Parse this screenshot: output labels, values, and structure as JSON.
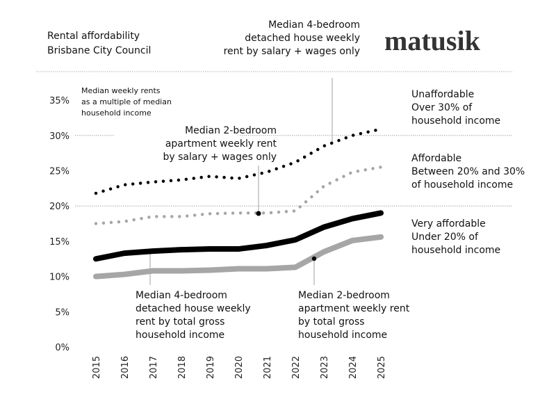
{
  "header": {
    "title": "Rental affordability",
    "subtitle": "Brisbane City Council",
    "logo": "matusik"
  },
  "subtitle_note": [
    "Median weekly rents",
    "as a multiple of median",
    "household income"
  ],
  "bands": [
    {
      "label": "Unaffordable",
      "desc": [
        "Over 30% of",
        "household income"
      ]
    },
    {
      "label": "Affordable",
      "desc": [
        "Between 20% and 30%",
        "of household income"
      ]
    },
    {
      "label": "Very affordable",
      "desc": [
        "Under 20% of",
        "household income"
      ]
    }
  ],
  "annotations": [
    {
      "lines": [
        "Median 4-bedroom",
        "detached house weekly",
        "rent by salary + wages only"
      ]
    },
    {
      "lines": [
        "Median 2-bedroom",
        "apartment weekly rent",
        "by salary + wages only"
      ]
    },
    {
      "lines": [
        "Median 4-bedroom",
        "detached house weekly",
        "rent by total gross",
        "household income"
      ]
    },
    {
      "lines": [
        "Median 2-bedroom",
        "apartment weekly rent",
        "by total gross",
        "household income"
      ]
    }
  ],
  "colors": {
    "black": "#000000",
    "grey": "#a6a6a6",
    "grid": "#999999"
  },
  "chart_data": {
    "type": "line",
    "title": "Rental affordability",
    "subtitle": "Brisbane City Council",
    "ylabel": "",
    "xlabel": "",
    "ylim": [
      0,
      35
    ],
    "yticks": [
      "0%",
      "5%",
      "10%",
      "15%",
      "20%",
      "25%",
      "30%",
      "35%"
    ],
    "x": [
      "2015",
      "2016",
      "2017",
      "2018",
      "2019",
      "2020",
      "2021",
      "2022",
      "2023",
      "2024",
      "2025"
    ],
    "reference_lines": [
      20,
      30
    ],
    "series": [
      {
        "name": "Median 4-bedroom detached house weekly rent by salary + wages only",
        "style": "dotted",
        "color": "#000000",
        "values": [
          21.8,
          23.0,
          23.4,
          23.7,
          24.2,
          23.9,
          24.8,
          26.2,
          28.5,
          30.0,
          30.9
        ]
      },
      {
        "name": "Median 2-bedroom apartment weekly rent by salary + wages only",
        "style": "dotted",
        "color": "#a6a6a6",
        "values": [
          17.5,
          17.8,
          18.5,
          18.5,
          18.9,
          19.0,
          19.0,
          19.3,
          22.8,
          24.8,
          25.5
        ]
      },
      {
        "name": "Median 4-bedroom detached house weekly rent by total gross household income",
        "style": "solid",
        "color": "#000000",
        "values": [
          12.5,
          13.3,
          13.6,
          13.8,
          13.9,
          13.9,
          14.4,
          15.2,
          17.0,
          18.2,
          19.0
        ]
      },
      {
        "name": "Median 2-bedroom apartment weekly rent by total gross household income",
        "style": "solid",
        "color": "#a6a6a6",
        "values": [
          10.0,
          10.3,
          10.8,
          10.8,
          10.9,
          11.1,
          11.1,
          11.3,
          13.5,
          15.1,
          15.6
        ]
      }
    ]
  }
}
